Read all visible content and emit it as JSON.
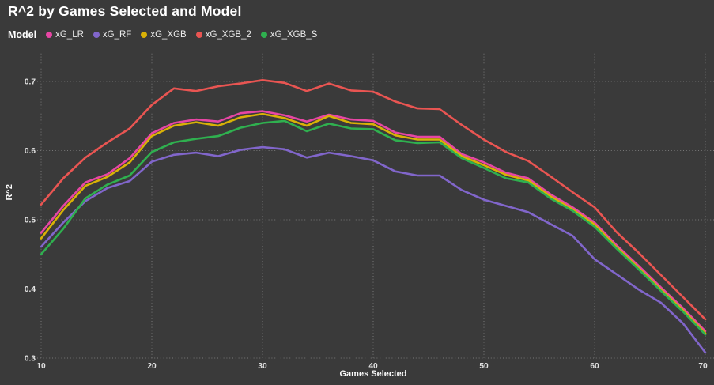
{
  "title": "R^2 by Games Selected and Model",
  "legend": {
    "label": "Model"
  },
  "axes": {
    "xlabel": "Games Selected",
    "ylabel": "R^2"
  },
  "colors": {
    "background": "#3a3a3a",
    "grid": "#8d8d8d",
    "tick_text": "#e2e2e2",
    "title_text": "#ffffff"
  },
  "chart_data": {
    "type": "line",
    "title": "R^2 by Games Selected and Model",
    "xlabel": "Games Selected",
    "ylabel": "R^2",
    "xlim": [
      10,
      70
    ],
    "ylim": [
      0.3,
      0.745
    ],
    "x_ticks": [
      10,
      20,
      30,
      40,
      50,
      60,
      70
    ],
    "y_ticks": [
      0.3,
      0.4,
      0.5,
      0.6,
      0.7
    ],
    "grid": "dotted",
    "legend_position": "top-left",
    "x": [
      10,
      12,
      14,
      16,
      18,
      20,
      22,
      24,
      26,
      28,
      30,
      32,
      34,
      36,
      38,
      40,
      42,
      44,
      46,
      48,
      50,
      52,
      54,
      56,
      58,
      60,
      62,
      64,
      66,
      68,
      70
    ],
    "series": [
      {
        "name": "xG_LR",
        "color": "#e746a4",
        "values": [
          0.481,
          0.52,
          0.554,
          0.566,
          0.589,
          0.625,
          0.64,
          0.645,
          0.642,
          0.654,
          0.657,
          0.651,
          0.642,
          0.652,
          0.645,
          0.643,
          0.626,
          0.62,
          0.62,
          0.595,
          0.583,
          0.568,
          0.56,
          0.537,
          0.518,
          0.496,
          0.463,
          0.433,
          0.402,
          0.372,
          0.339
        ]
      },
      {
        "name": "xG_RF",
        "color": "#8166cb",
        "values": [
          0.461,
          0.496,
          0.527,
          0.546,
          0.556,
          0.584,
          0.594,
          0.597,
          0.592,
          0.601,
          0.605,
          0.602,
          0.59,
          0.597,
          0.592,
          0.586,
          0.57,
          0.564,
          0.564,
          0.543,
          0.529,
          0.52,
          0.511,
          0.494,
          0.477,
          0.443,
          0.421,
          0.399,
          0.38,
          0.35,
          0.308
        ]
      },
      {
        "name": "xG_XGB",
        "color": "#d9b106",
        "values": [
          0.473,
          0.514,
          0.549,
          0.562,
          0.583,
          0.621,
          0.636,
          0.641,
          0.636,
          0.648,
          0.653,
          0.647,
          0.636,
          0.65,
          0.64,
          0.638,
          0.622,
          0.616,
          0.616,
          0.592,
          0.579,
          0.565,
          0.557,
          0.534,
          0.515,
          0.493,
          0.46,
          0.43,
          0.399,
          0.369,
          0.336
        ]
      },
      {
        "name": "xG_XGB_2",
        "color": "#e95552",
        "values": [
          0.522,
          0.56,
          0.59,
          0.612,
          0.632,
          0.666,
          0.69,
          0.686,
          0.693,
          0.697,
          0.702,
          0.698,
          0.686,
          0.697,
          0.687,
          0.685,
          0.671,
          0.661,
          0.66,
          0.637,
          0.616,
          0.598,
          0.585,
          0.563,
          0.54,
          0.518,
          0.482,
          0.452,
          0.42,
          0.388,
          0.356
        ]
      },
      {
        "name": "xG_XGB_S",
        "color": "#2fb04f",
        "values": [
          0.45,
          0.487,
          0.531,
          0.551,
          0.564,
          0.598,
          0.612,
          0.617,
          0.621,
          0.633,
          0.64,
          0.643,
          0.628,
          0.639,
          0.632,
          0.631,
          0.615,
          0.611,
          0.612,
          0.589,
          0.575,
          0.56,
          0.554,
          0.531,
          0.513,
          0.49,
          0.458,
          0.428,
          0.397,
          0.367,
          0.334
        ]
      }
    ]
  }
}
